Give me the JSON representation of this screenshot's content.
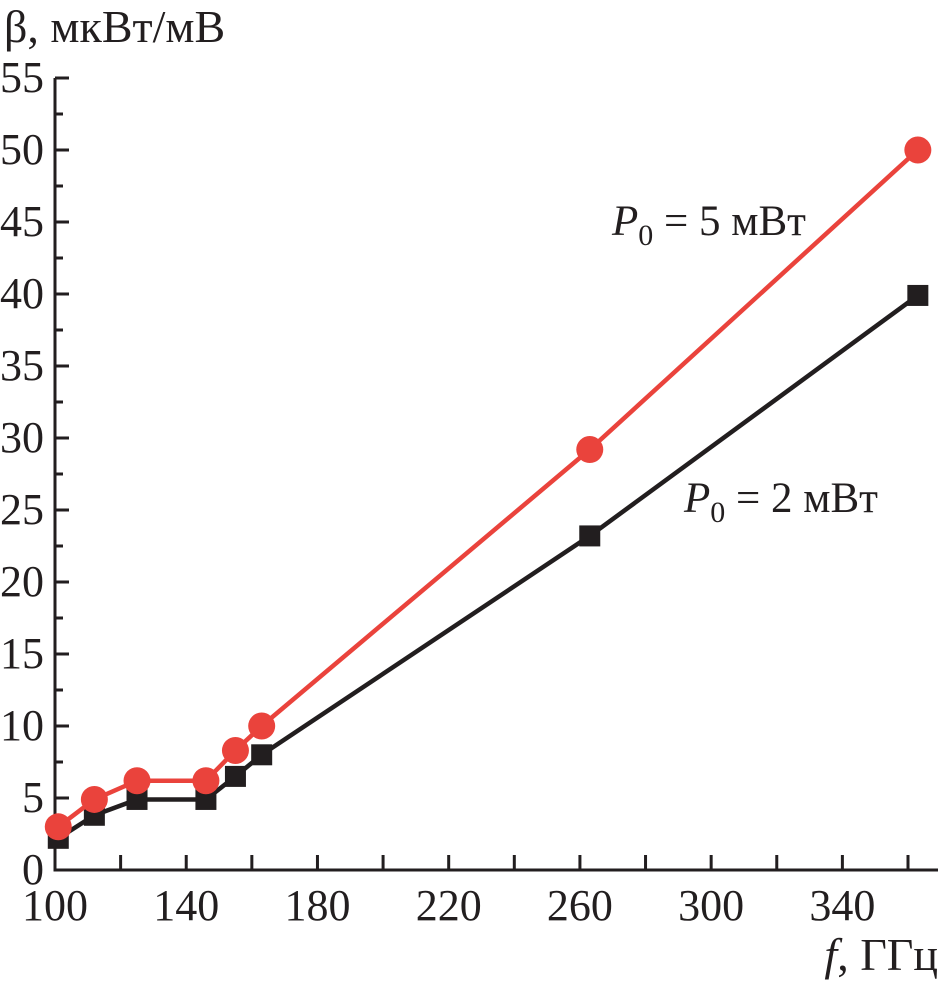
{
  "figure": {
    "background": "#ffffff",
    "axis_color": "#221e1f",
    "text_color": "#221e1f",
    "y_axis": {
      "title": "β, мкВт/мВ",
      "min": 0,
      "max": 55,
      "major_step": 5,
      "minor_step": 2.5,
      "tick_labels": [
        "0",
        "5",
        "10",
        "15",
        "20",
        "25",
        "30",
        "35",
        "40",
        "45",
        "50",
        "55"
      ]
    },
    "x_axis": {
      "title_italic": "f",
      "title_rest": ", ГГц",
      "tick_start": 100,
      "tick_end": 360,
      "tick_step": 20,
      "labeled_ticks": [
        "100",
        "140",
        "180",
        "220",
        "260",
        "300",
        "340"
      ]
    }
  },
  "chart_data": {
    "type": "line",
    "title": "",
    "xlabel": "f, ГГц",
    "ylabel": "β, мкВт/мВ",
    "xlim": [
      100,
      368
    ],
    "ylim": [
      0,
      55
    ],
    "grid": false,
    "legend_position": "inline-annotations",
    "x_ticks_labeled": [
      100,
      140,
      180,
      220,
      260,
      300,
      340
    ],
    "y_ticks_labeled": [
      0,
      5,
      10,
      15,
      20,
      25,
      30,
      35,
      40,
      45,
      50,
      55
    ],
    "series": [
      {
        "name": "P0 = 2 мВт",
        "annotation": {
          "symbol": "P",
          "subscript": "0",
          "suffix": " = 2 мВт"
        },
        "color": "#221e1f",
        "marker": "square",
        "marker_side": 21,
        "line_width": 4.5,
        "x": [
          101,
          112,
          125,
          146,
          155,
          163,
          263,
          363
        ],
        "y": [
          2.2,
          3.8,
          4.9,
          4.9,
          6.5,
          8.0,
          23.2,
          39.9
        ]
      },
      {
        "name": "P0 = 5 мВт",
        "annotation": {
          "symbol": "P",
          "subscript": "0",
          "suffix": " = 5 мВт"
        },
        "color": "#ea433c",
        "marker": "circle",
        "marker_radius": 13.5,
        "line_width": 4.5,
        "x": [
          101,
          112,
          125,
          146,
          155,
          163,
          263,
          363
        ],
        "y": [
          3.0,
          4.9,
          6.2,
          6.2,
          8.3,
          10.0,
          29.2,
          50.0
        ]
      }
    ]
  }
}
